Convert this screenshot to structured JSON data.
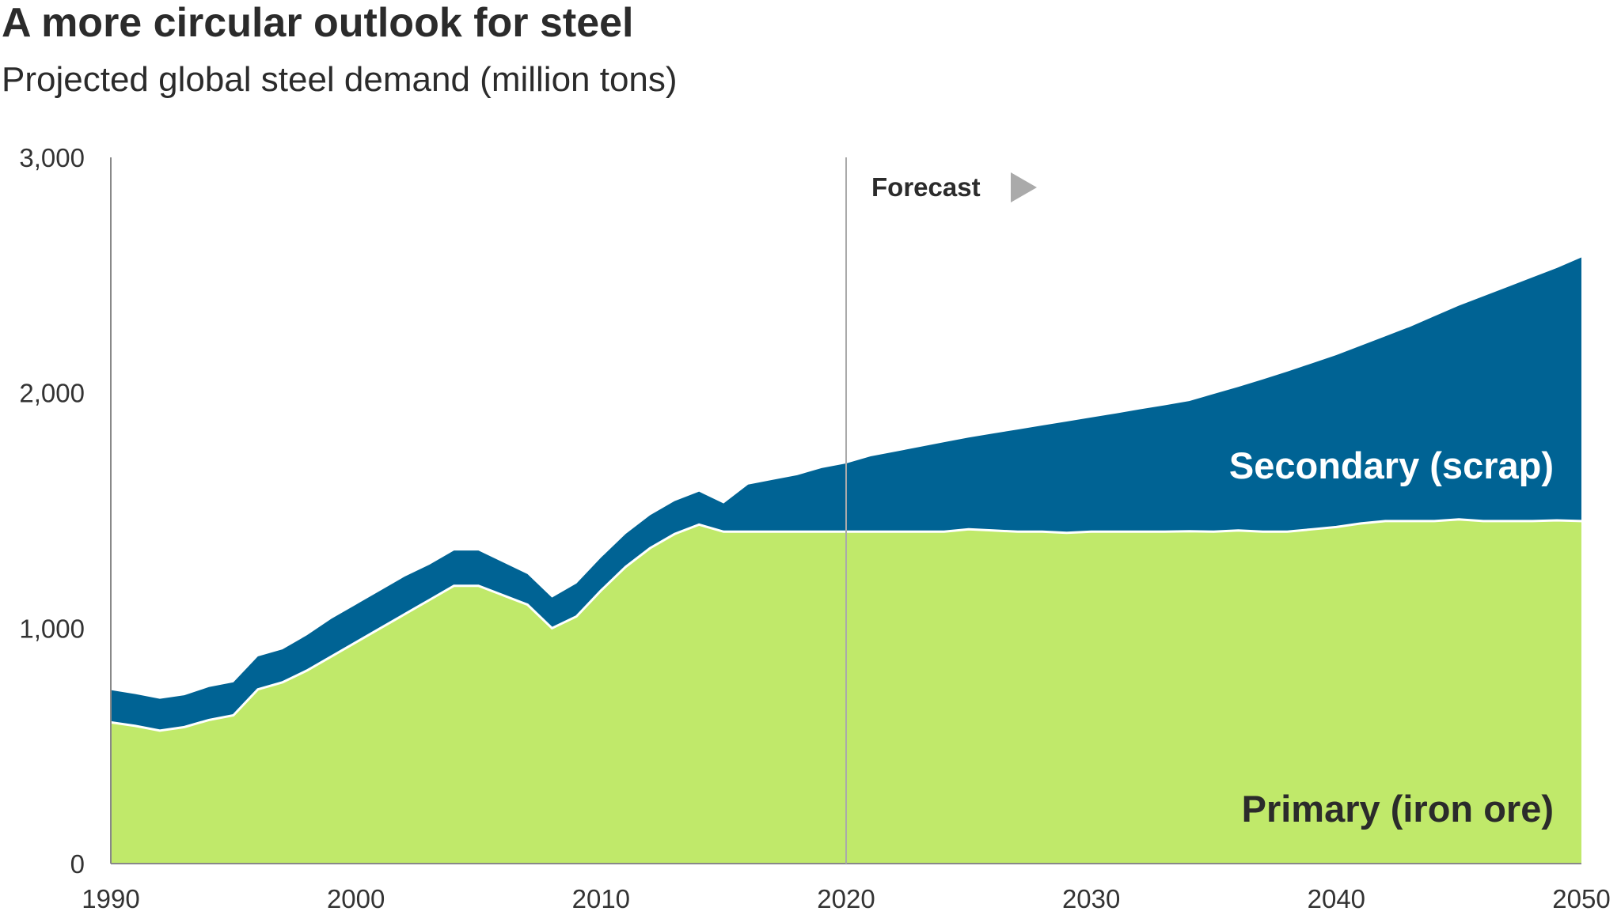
{
  "chart_data": {
    "type": "area",
    "stacked": true,
    "title": "A more circular outlook for steel",
    "subtitle": "Projected global steel demand (million tons)",
    "xlabel": "",
    "ylabel": "",
    "xlim": [
      1990,
      2050
    ],
    "ylim": [
      0,
      3000
    ],
    "x_ticks": [
      "1990",
      "2000",
      "2010",
      "2020",
      "2030",
      "2040",
      "2050"
    ],
    "y_ticks": [
      "0",
      "1,000",
      "2,000",
      "3,000"
    ],
    "grid": false,
    "annotation": {
      "label": "Forecast",
      "x": 2020
    },
    "x": [
      1990,
      1991,
      1992,
      1993,
      1994,
      1995,
      1996,
      1997,
      1998,
      1999,
      2000,
      2001,
      2002,
      2003,
      2004,
      2005,
      2006,
      2007,
      2008,
      2009,
      2010,
      2011,
      2012,
      2013,
      2014,
      2015,
      2016,
      2017,
      2018,
      2019,
      2020,
      2021,
      2022,
      2023,
      2024,
      2025,
      2026,
      2027,
      2028,
      2029,
      2030,
      2031,
      2032,
      2033,
      2034,
      2035,
      2036,
      2037,
      2038,
      2039,
      2040,
      2041,
      2042,
      2043,
      2044,
      2045,
      2046,
      2047,
      2048,
      2049,
      2050
    ],
    "series": [
      {
        "name": "Primary (iron ore)",
        "color": "#c0e96a",
        "values": [
          600,
          585,
          565,
          580,
          610,
          630,
          740,
          770,
          820,
          880,
          940,
          1000,
          1060,
          1120,
          1180,
          1180,
          1140,
          1100,
          1000,
          1050,
          1160,
          1260,
          1340,
          1400,
          1440,
          1410,
          1410,
          1410,
          1410,
          1410,
          1410,
          1410,
          1410,
          1410,
          1410,
          1420,
          1415,
          1410,
          1410,
          1405,
          1410,
          1410,
          1410,
          1410,
          1412,
          1410,
          1415,
          1410,
          1410,
          1420,
          1430,
          1445,
          1455,
          1455,
          1455,
          1462,
          1455,
          1455,
          1455,
          1458,
          1455
        ]
      },
      {
        "name": "Secondary (scrap)",
        "color": "#006394",
        "values": [
          137,
          135,
          135,
          135,
          140,
          140,
          140,
          140,
          150,
          160,
          160,
          160,
          160,
          150,
          150,
          150,
          140,
          130,
          130,
          140,
          140,
          140,
          140,
          140,
          140,
          120,
          200,
          220,
          240,
          270,
          290,
          320,
          340,
          360,
          380,
          390,
          412,
          434,
          451,
          473,
          485,
          502,
          520,
          537,
          553,
          585,
          610,
          647,
          680,
          705,
          730,
          755,
          785,
          825,
          870,
          908,
          955,
          995,
          1035,
          1072,
          1120
        ]
      }
    ]
  }
}
